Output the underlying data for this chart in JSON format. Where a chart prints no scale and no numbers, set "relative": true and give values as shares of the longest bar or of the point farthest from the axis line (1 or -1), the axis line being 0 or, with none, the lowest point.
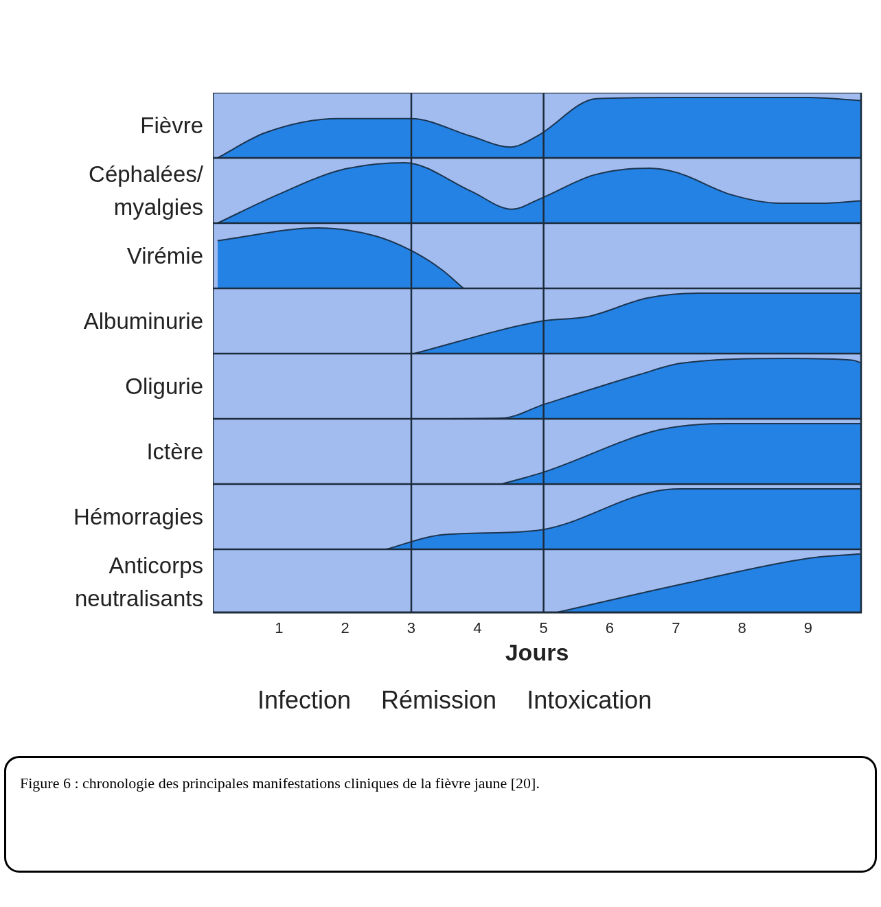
{
  "chart_data": [
    {
      "type": "area",
      "ylabel": "Fièvre",
      "relative": true,
      "color": "#2382e4",
      "xlim": [
        0,
        9.8
      ],
      "tick_labels": false,
      "ref_lines": [
        {
          "axis": "x",
          "value": 3,
          "color": "#1c2c3c"
        },
        {
          "axis": "x",
          "value": 5,
          "color": "#1c2c3c"
        }
      ],
      "x": [
        0.07,
        0.8,
        1.9,
        3,
        3.9,
        4.5,
        4.9,
        5.8,
        7,
        9,
        9.8
      ],
      "values": [
        0,
        0.42,
        0.65,
        0.65,
        0.36,
        0.18,
        0.36,
        0.98,
        1,
        1,
        0.95
      ]
    },
    {
      "type": "area",
      "ylabel": "Céphalées/ myalgies",
      "relative": true,
      "color": "#2382e4",
      "xlim": [
        0,
        9.8
      ],
      "tick_labels": false,
      "ref_lines": [
        {
          "axis": "x",
          "value": 3,
          "color": "#1c2c3c"
        },
        {
          "axis": "x",
          "value": 5,
          "color": "#1c2c3c"
        }
      ],
      "x": [
        0.07,
        0.98,
        1.9,
        2.9,
        3.9,
        4.52,
        4.94,
        5.77,
        6.6,
        7.01,
        7.84,
        8.57,
        9.2,
        9.79
      ],
      "values": [
        0,
        0.47,
        0.87,
        1,
        0.53,
        0.23,
        0.4,
        0.8,
        0.91,
        0.84,
        0.47,
        0.33,
        0.33,
        0.37
      ]
    },
    {
      "type": "area",
      "ylabel": "Virémie",
      "relative": true,
      "color": "#2382e4",
      "xlim": [
        0,
        9.8
      ],
      "tick_labels": false,
      "ref_lines": [
        {
          "axis": "x",
          "value": 3,
          "color": "#1c2c3c"
        },
        {
          "axis": "x",
          "value": 5,
          "color": "#1c2c3c"
        }
      ],
      "x": [
        0.07,
        1.58,
        2.45,
        3.01,
        3.46,
        3.79
      ],
      "values": [
        0.79,
        1,
        0.87,
        0.62,
        0.31,
        0
      ]
    },
    {
      "type": "area",
      "ylabel": "Albuminurie",
      "relative": true,
      "color": "#2382e4",
      "xlim": [
        0,
        9.8
      ],
      "tick_labels": false,
      "ref_lines": [
        {
          "axis": "x",
          "value": 3,
          "color": "#1c2c3c"
        },
        {
          "axis": "x",
          "value": 5,
          "color": "#1c2c3c"
        }
      ],
      "x": [
        3.04,
        4.98,
        5.66,
        6.57,
        7.34,
        9.79
      ],
      "values": [
        0,
        0.54,
        0.61,
        0.92,
        1,
        1
      ]
    },
    {
      "type": "area",
      "ylabel": "Oligurie",
      "relative": true,
      "color": "#2382e4",
      "xlim": [
        0,
        9.8
      ],
      "tick_labels": false,
      "ref_lines": [
        {
          "axis": "x",
          "value": 3,
          "color": "#1c2c3c"
        },
        {
          "axis": "x",
          "value": 5,
          "color": "#1c2c3c"
        }
      ],
      "x": [
        3.46,
        4.37,
        5.01,
        6.44,
        7.08,
        8.71,
        9.68,
        9.79
      ],
      "values": [
        0,
        0.01,
        0.24,
        0.73,
        0.92,
        1,
        0.97,
        0.93
      ]
    },
    {
      "type": "area",
      "ylabel": "Ictère",
      "relative": true,
      "color": "#2382e4",
      "xlim": [
        0,
        9.8
      ],
      "tick_labels": false,
      "ref_lines": [
        {
          "axis": "x",
          "value": 3,
          "color": "#1c2c3c"
        },
        {
          "axis": "x",
          "value": 5,
          "color": "#1c2c3c"
        }
      ],
      "x": [
        4.37,
        5.01,
        6.76,
        7.74,
        9.79
      ],
      "values": [
        0,
        0.2,
        0.9,
        1,
        1
      ]
    },
    {
      "type": "area",
      "ylabel": "Hémorragies",
      "relative": true,
      "color": "#2382e4",
      "xlim": [
        0,
        9.8
      ],
      "tick_labels": false,
      "ref_lines": [
        {
          "axis": "x",
          "value": 3,
          "color": "#1c2c3c"
        },
        {
          "axis": "x",
          "value": 5,
          "color": "#1c2c3c"
        }
      ],
      "x": [
        2.62,
        3.46,
        4.89,
        6.64,
        7.08,
        9.79
      ],
      "values": [
        0,
        0.24,
        0.31,
        0.95,
        1,
        1
      ]
    },
    {
      "type": "area",
      "ylabel": "Anticorps neutralisants",
      "relative": true,
      "color": "#2382e4",
      "xlim": [
        0,
        9.8
      ],
      "xticks": [
        1,
        2,
        3,
        4,
        5,
        6,
        7,
        8,
        9
      ],
      "tick_labels": "x",
      "xlabel": "Jours",
      "ref_lines": [
        {
          "axis": "x",
          "value": 3,
          "color": "#1c2c3c"
        },
        {
          "axis": "x",
          "value": 5,
          "color": "#1c2c3c"
        }
      ],
      "x": [
        5.21,
        7.08,
        9.03,
        9.79
      ],
      "values": [
        0,
        0.48,
        0.93,
        1
      ],
      "annotations": [
        "Infection",
        "Rémission",
        "Intoxication",
        "Figure 6 : chronologie des principales manifestations cliniques de la fièvre jaune [20]."
      ]
    }
  ]
}
